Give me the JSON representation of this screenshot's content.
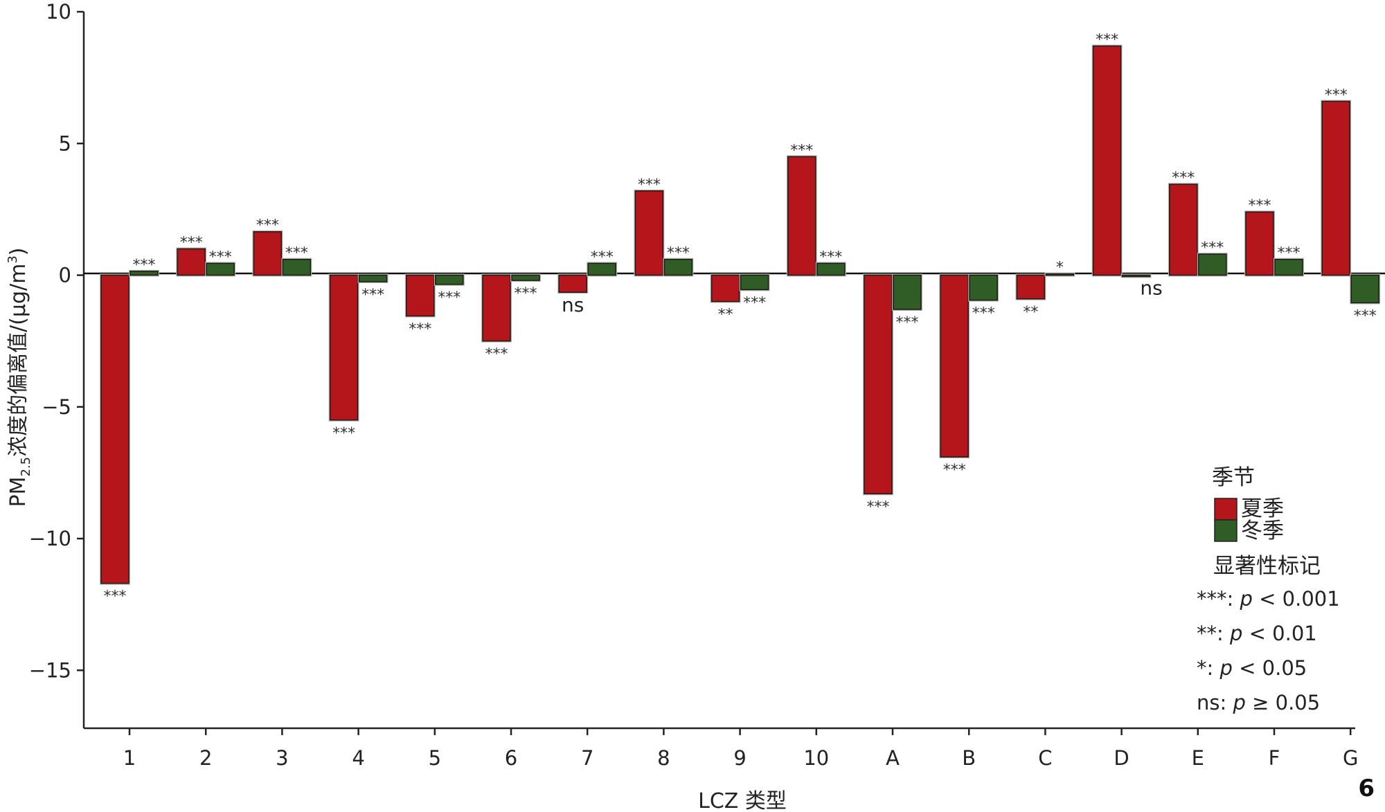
{
  "chart_data": {
    "type": "bar",
    "xlabel": "LCZ 类型",
    "ylabel_main": "PM",
    "ylabel_sub": "2.5",
    "ylabel_rest": "浓度的偏离值/(μg/m",
    "ylabel_sup": "3",
    "ylabel_end": ")",
    "ylim": [
      -17.2,
      10
    ],
    "yticks": [
      10,
      5,
      0,
      -5,
      -10,
      -15
    ],
    "ytick_labels": [
      "10",
      "5",
      "0",
      "−5",
      "−10",
      "−15"
    ],
    "categories": [
      "1",
      "2",
      "3",
      "4",
      "5",
      "6",
      "7",
      "8",
      "9",
      "10",
      "A",
      "B",
      "C",
      "D",
      "E",
      "F",
      "G"
    ],
    "series": [
      {
        "name": "夏季",
        "color": "#b5161b",
        "values": [
          -11.7,
          1.0,
          1.65,
          -5.5,
          -1.55,
          -2.5,
          -0.65,
          3.2,
          -1.0,
          4.5,
          -8.3,
          -6.9,
          -0.9,
          8.7,
          3.45,
          2.4,
          6.6
        ],
        "significance": [
          "***",
          "***",
          "***",
          "***",
          "***",
          "***",
          "ns",
          "***",
          "**",
          "***",
          "***",
          "***",
          "**",
          "***",
          "***",
          "***",
          "***"
        ]
      },
      {
        "name": "冬季",
        "color": "#2f5d25",
        "values": [
          0.15,
          0.45,
          0.6,
          -0.25,
          -0.35,
          -0.2,
          0.45,
          0.6,
          -0.55,
          0.45,
          -1.3,
          -0.95,
          0.05,
          0.0,
          0.8,
          0.6,
          -1.05
        ],
        "significance": [
          "***",
          "***",
          "***",
          "***",
          "***",
          "***",
          "***",
          "***",
          "***",
          "***",
          "***",
          "***",
          "*",
          "ns",
          "***",
          "***",
          "***"
        ]
      }
    ],
    "legend": {
      "season_title": "季节",
      "sig_title": "显著性标记",
      "sig_entries": [
        {
          "mark": "***:",
          "p": "p",
          "rel": " < 0.001"
        },
        {
          "mark": "**:",
          "p": "p",
          "rel": " < 0.01"
        },
        {
          "mark": "*:",
          "p": "p",
          "rel": " < 0.05"
        },
        {
          "mark": "ns:",
          "p": "p",
          "rel": " ≥ 0.05"
        }
      ],
      "placement": "right"
    },
    "panel_label": "6",
    "grid": false
  }
}
